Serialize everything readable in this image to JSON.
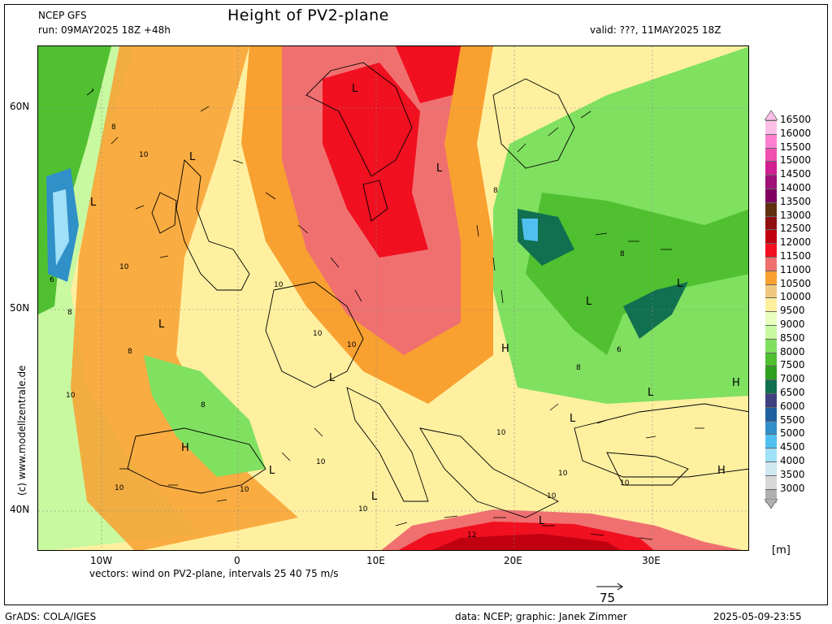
{
  "header": {
    "model": "NCEP GFS",
    "run": "run: 09MAY2025 18Z +48h",
    "title": "Height of PV2-plane",
    "valid": "valid: ???, 11MAY2025 18Z"
  },
  "vertical_credit": "(c) www.modellzentrale.de",
  "axes": {
    "lat_labels": [
      "60N",
      "50N",
      "40N"
    ],
    "lon_labels": [
      "10W",
      "0",
      "10E",
      "20E",
      "30E"
    ]
  },
  "vectors_note": "vectors: wind on PV2-plane, intervals 25 40 75 m/s",
  "reference_vector": "75",
  "unit": "[m]",
  "legend": {
    "levels": [
      "16500",
      "16000",
      "15500",
      "15000",
      "14500",
      "14000",
      "13500",
      "13000",
      "12500",
      "12000",
      "11500",
      "11000",
      "10500",
      "10000",
      "9500",
      "9000",
      "8500",
      "8000",
      "7500",
      "7000",
      "6500",
      "6000",
      "5500",
      "5000",
      "4500",
      "4000",
      "3500",
      "3000"
    ],
    "colors": [
      "#ffc0e8",
      "#ff80d0",
      "#f050b0",
      "#d02090",
      "#a01078",
      "#800060",
      "#603010",
      "#901010",
      "#c00010",
      "#f01020",
      "#f07070",
      "#f8a030",
      "#f0c880",
      "#fff0a0",
      "#e8ffc0",
      "#c8f8a0",
      "#80e060",
      "#50c030",
      "#30a020",
      "#107050",
      "#404080",
      "#2060a0",
      "#3090c8",
      "#50c0f0",
      "#a0e0f8",
      "#d0e8f0",
      "#d8d8d8",
      "#b0b0b0"
    ]
  },
  "map_labels": {
    "L": "L",
    "H": "H",
    "c8": "8",
    "c10": "10",
    "c12": "12",
    "c6": "6"
  },
  "footer": {
    "left": "GrADS: COLA/IGES",
    "center": "data: NCEP; graphic: Janek Zimmer",
    "right": "2025-05-09-23:55"
  }
}
